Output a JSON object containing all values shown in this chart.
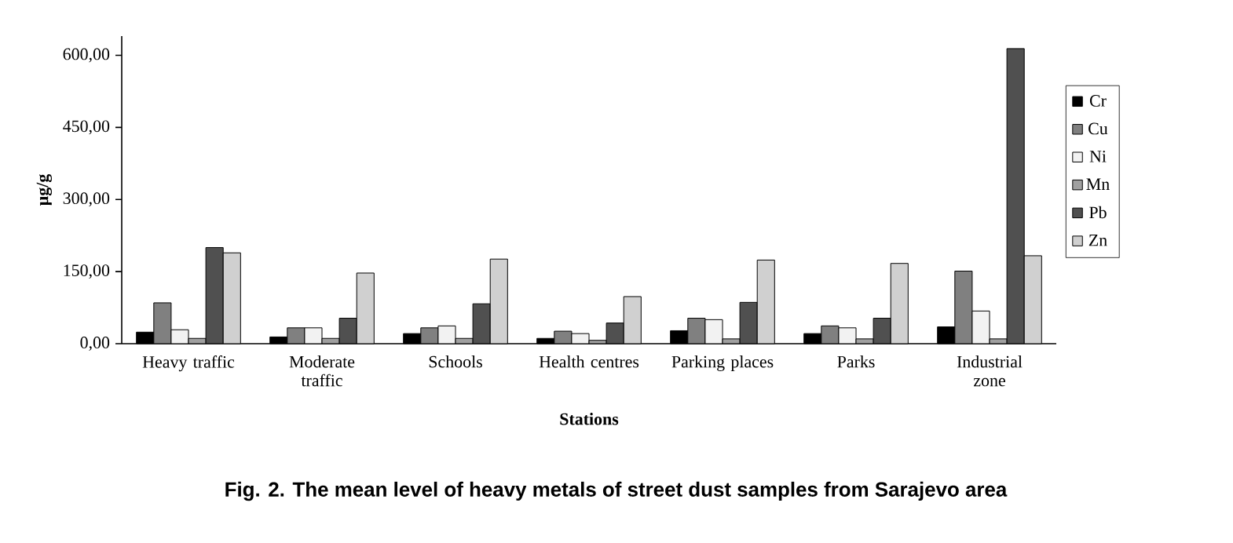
{
  "chart_data": {
    "type": "bar",
    "title": "Fig. 2. The mean level of heavy metals of street dust samples from Sarajevo area",
    "xlabel": "Stations",
    "ylabel": "µg/g",
    "categories": [
      "Heavy traffic",
      "Moderate traffic",
      "Schools",
      "Health centres",
      "Parking places",
      "Parks",
      "Industrial zone"
    ],
    "series": [
      {
        "name": "Cr",
        "color": "#000000",
        "values": [
          24,
          14,
          21,
          11,
          27,
          21,
          35
        ]
      },
      {
        "name": "Cu",
        "color": "#808080",
        "values": [
          85,
          33,
          33,
          26,
          53,
          37,
          151
        ]
      },
      {
        "name": "Ni",
        "color": "#f2f2f2",
        "values": [
          29,
          33,
          37,
          21,
          50,
          33,
          68
        ]
      },
      {
        "name": "Mn",
        "color": "#a0a0a0",
        "values": [
          11,
          11,
          11,
          7,
          10,
          10,
          10
        ]
      },
      {
        "name": "Pb",
        "color": "#505050",
        "values": [
          200,
          53,
          83,
          43,
          86,
          53,
          614
        ]
      },
      {
        "name": "Zn",
        "color": "#d0d0d0",
        "values": [
          189,
          147,
          176,
          98,
          174,
          167,
          183
        ]
      }
    ],
    "ylim": [
      0,
      640
    ],
    "yticks": [
      {
        "value": 0,
        "label": "0,00"
      },
      {
        "value": 150,
        "label": "150,00"
      },
      {
        "value": 300,
        "label": "300,00"
      },
      {
        "value": 450,
        "label": "450,00"
      },
      {
        "value": 600,
        "label": "600,00"
      }
    ],
    "grid": false,
    "legend": "right"
  }
}
